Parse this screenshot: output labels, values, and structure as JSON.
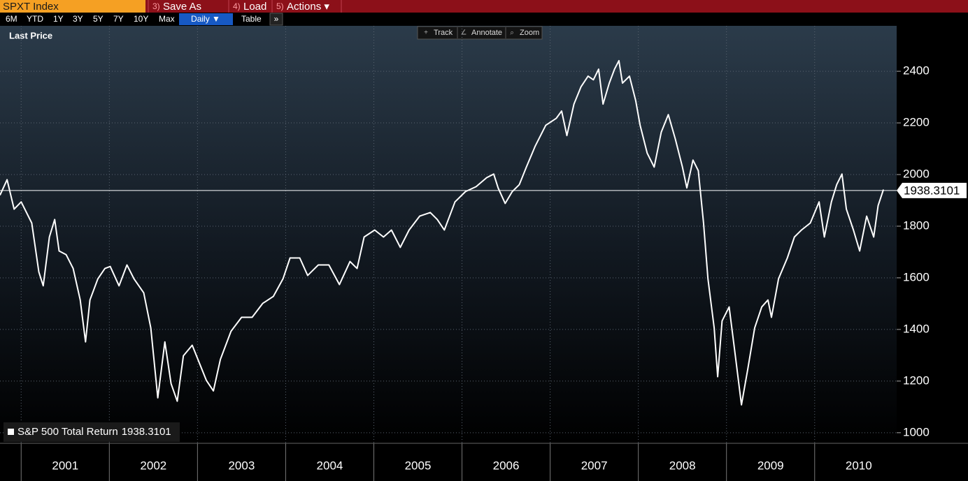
{
  "header": {
    "ticker": "SPXT Index",
    "menu": [
      {
        "key": "3)",
        "label": "Save As"
      },
      {
        "key": "4)",
        "label": "Load"
      },
      {
        "key": "5)",
        "label": "Actions ▾"
      }
    ]
  },
  "toolbar": {
    "ranges": [
      "6M",
      "YTD",
      "1Y",
      "3Y",
      "5Y",
      "7Y",
      "10Y",
      "Max"
    ],
    "frequency": "Daily ▼",
    "table": "Table",
    "more": "»",
    "tools": [
      "Track",
      "Annotate",
      "Zoom"
    ]
  },
  "chart_data": {
    "type": "line",
    "label": "Last Price",
    "x": [
      2000.76,
      2000.84,
      2000.92,
      2001.0,
      2001.12,
      2001.2,
      2001.25,
      2001.32,
      2001.38,
      2001.43,
      2001.51,
      2001.59,
      2001.67,
      2001.73,
      2001.78,
      2001.87,
      2001.95,
      2002.01,
      2002.11,
      2002.2,
      2002.28,
      2002.39,
      2002.47,
      2002.55,
      2002.63,
      2002.7,
      2002.77,
      2002.84,
      2002.94,
      2003.02,
      2003.1,
      2003.18,
      2003.26,
      2003.38,
      2003.5,
      2003.62,
      2003.74,
      2003.86,
      2003.97,
      2004.05,
      2004.16,
      2004.25,
      2004.37,
      2004.49,
      2004.61,
      2004.73,
      2004.81,
      2004.89,
      2005.01,
      2005.11,
      2005.2,
      2005.3,
      2005.4,
      2005.52,
      2005.64,
      2005.72,
      2005.8,
      2005.92,
      2006.04,
      2006.16,
      2006.28,
      2006.36,
      2006.41,
      2006.49,
      2006.57,
      2006.65,
      2006.73,
      2006.83,
      2006.95,
      2007.07,
      2007.13,
      2007.19,
      2007.27,
      2007.35,
      2007.43,
      2007.49,
      2007.55,
      2007.6,
      2007.67,
      2007.73,
      2007.78,
      2007.82,
      2007.9,
      2007.97,
      2008.02,
      2008.1,
      2008.18,
      2008.26,
      2008.34,
      2008.42,
      2008.5,
      2008.55,
      2008.62,
      2008.68,
      2008.74,
      2008.79,
      2008.86,
      2008.9,
      2008.95,
      2009.03,
      2009.09,
      2009.17,
      2009.24,
      2009.32,
      2009.4,
      2009.47,
      2009.51,
      2009.59,
      2009.69,
      2009.77,
      2009.85,
      2009.95,
      2010.05,
      2010.11,
      2010.19,
      2010.25,
      2010.31,
      2010.36,
      2010.44,
      2010.51,
      2010.59,
      2010.67,
      2010.72,
      2010.78
    ],
    "series": [
      {
        "name": "S&P 500 Total Return",
        "color": "#ffffff",
        "values": [
          1920,
          1980,
          1866,
          1894,
          1812,
          1623,
          1569,
          1758,
          1826,
          1704,
          1690,
          1636,
          1514,
          1352,
          1514,
          1596,
          1636,
          1644,
          1569,
          1650,
          1596,
          1542,
          1406,
          1135,
          1352,
          1190,
          1122,
          1298,
          1339,
          1271,
          1203,
          1162,
          1284,
          1393,
          1447,
          1447,
          1501,
          1528,
          1596,
          1677,
          1677,
          1609,
          1650,
          1650,
          1574,
          1663,
          1636,
          1758,
          1785,
          1758,
          1785,
          1718,
          1785,
          1839,
          1853,
          1826,
          1785,
          1894,
          1934,
          1953,
          1988,
          2002,
          1948,
          1888,
          1934,
          1961,
          2029,
          2110,
          2191,
          2218,
          2246,
          2151,
          2273,
          2340,
          2381,
          2367,
          2408,
          2273,
          2354,
          2408,
          2441,
          2354,
          2381,
          2286,
          2191,
          2083,
          2029,
          2164,
          2232,
          2137,
          2029,
          1948,
          2056,
          2015,
          1812,
          1596,
          1406,
          1217,
          1433,
          1487,
          1325,
          1108,
          1244,
          1406,
          1487,
          1514,
          1447,
          1596,
          1677,
          1758,
          1785,
          1812,
          1894,
          1758,
          1894,
          1961,
          2002,
          1866,
          1785,
          1704,
          1839,
          1758,
          1880,
          1942
        ]
      }
    ],
    "last_value": 1938.3101,
    "xlim": [
      2000.76,
      2010.93
    ],
    "xticks": [
      2001,
      2002,
      2003,
      2004,
      2005,
      2006,
      2007,
      2008,
      2009,
      2010
    ],
    "ylim": [
      959,
      2576
    ],
    "yticks": [
      1000,
      1200,
      1400,
      1600,
      1800,
      2000,
      2200,
      2400
    ],
    "grid": true
  }
}
